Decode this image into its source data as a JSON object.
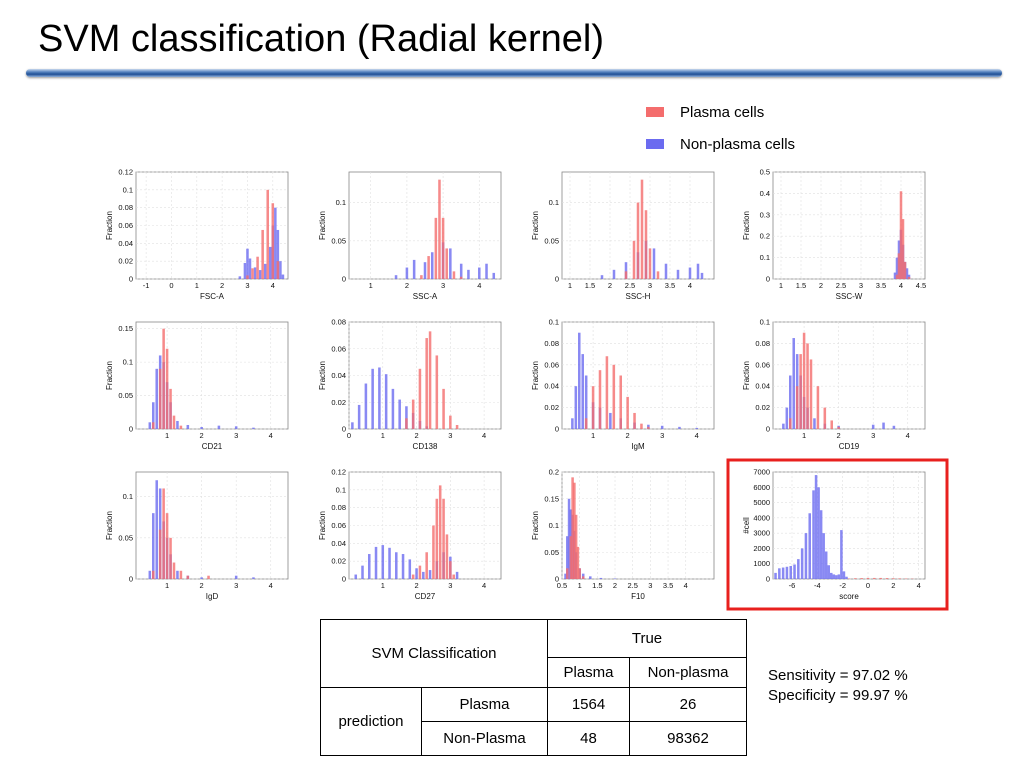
{
  "title": "SVM classification (Radial kernel)",
  "legend": [
    {
      "label": "Plasma cells",
      "color": "#f46d6d"
    },
    {
      "label": "Non-plasma cells",
      "color": "#6b6bf0"
    }
  ],
  "colors": {
    "plasma": "#f46d6d",
    "nonplasma": "#6b6bf0",
    "highlight": "#e8201e",
    "grid": "#e0e0e0"
  },
  "chart_data": [
    {
      "type": "bar",
      "title": "",
      "xlabel": "FSC-A",
      "ylabel": "Fraction",
      "xlim": [
        -1.4,
        4.6
      ],
      "ylim": [
        0,
        0.12
      ],
      "xticks": [
        "-1",
        "0",
        "1",
        "2",
        "3",
        "4"
      ],
      "yticks": [
        "0",
        "0.02",
        "0.04",
        "0.06",
        "0.08",
        "0.1",
        "0.12"
      ],
      "series": [
        {
          "name": "Plasma cells",
          "x": [
            3.0,
            3.2,
            3.4,
            3.6,
            3.8,
            4.0,
            4.2
          ],
          "values": [
            0.004,
            0.012,
            0.025,
            0.055,
            0.1,
            0.085,
            0.02
          ]
        },
        {
          "name": "Non-plasma cells",
          "x": [
            2.7,
            2.9,
            3.0,
            3.1,
            3.3,
            3.5,
            3.7,
            3.9,
            4.0,
            4.1,
            4.2,
            4.3,
            4.4
          ],
          "values": [
            0.003,
            0.018,
            0.034,
            0.023,
            0.013,
            0.01,
            0.017,
            0.036,
            0.06,
            0.08,
            0.055,
            0.02,
            0.005
          ]
        }
      ]
    },
    {
      "type": "bar",
      "title": "",
      "xlabel": "SSC-A",
      "ylabel": "Fraction",
      "xlim": [
        0.4,
        4.6
      ],
      "ylim": [
        0,
        0.14
      ],
      "xticks": [
        "1",
        "2",
        "3",
        "4"
      ],
      "yticks": [
        "0",
        "0.05",
        "0.1"
      ],
      "series": [
        {
          "name": "Plasma cells",
          "x": [
            2.4,
            2.6,
            2.8,
            2.9,
            3.0,
            3.1,
            3.3,
            3.5
          ],
          "values": [
            0.005,
            0.03,
            0.08,
            0.13,
            0.08,
            0.04,
            0.01,
            0.003
          ]
        },
        {
          "name": "Non-plasma cells",
          "x": [
            1.7,
            2.0,
            2.2,
            2.5,
            2.7,
            3.0,
            3.2,
            3.5,
            3.7,
            4.0,
            4.2,
            4.4
          ],
          "values": [
            0.005,
            0.015,
            0.025,
            0.022,
            0.035,
            0.048,
            0.04,
            0.02,
            0.012,
            0.015,
            0.02,
            0.008
          ]
        }
      ]
    },
    {
      "type": "bar",
      "title": "",
      "xlabel": "SSC-H",
      "ylabel": "Fraction",
      "xlim": [
        0.8,
        4.6
      ],
      "ylim": [
        0,
        0.14
      ],
      "xticks": [
        "1",
        "1.5",
        "2",
        "2.5",
        "3",
        "3.5",
        "4"
      ],
      "yticks": [
        "0",
        "0.05",
        "0.1"
      ],
      "series": [
        {
          "name": "Plasma cells",
          "x": [
            2.4,
            2.6,
            2.7,
            2.8,
            2.9,
            3.0,
            3.2
          ],
          "values": [
            0.01,
            0.05,
            0.1,
            0.13,
            0.09,
            0.04,
            0.01
          ]
        },
        {
          "name": "Non-plasma cells",
          "x": [
            1.8,
            2.1,
            2.4,
            2.7,
            2.9,
            3.1,
            3.4,
            3.7,
            4.0,
            4.2,
            4.3
          ],
          "values": [
            0.005,
            0.012,
            0.022,
            0.035,
            0.05,
            0.04,
            0.02,
            0.012,
            0.015,
            0.02,
            0.008
          ]
        }
      ]
    },
    {
      "type": "bar",
      "title": "",
      "xlabel": "SSC-W",
      "ylabel": "Fraction",
      "xlim": [
        0.8,
        4.6
      ],
      "ylim": [
        0,
        0.5
      ],
      "xticks": [
        "1",
        "1.5",
        "2",
        "2.5",
        "3",
        "3.5",
        "4",
        "4.5"
      ],
      "yticks": [
        "0",
        "0.1",
        "0.2",
        "0.3",
        "0.4",
        "0.5"
      ],
      "series": [
        {
          "name": "Plasma cells",
          "x": [
            3.9,
            3.95,
            4.0,
            4.05,
            4.1,
            4.2
          ],
          "values": [
            0.02,
            0.12,
            0.41,
            0.28,
            0.08,
            0.01
          ]
        },
        {
          "name": "Non-plasma cells",
          "x": [
            3.85,
            3.9,
            3.95,
            4.0,
            4.05,
            4.1,
            4.15,
            4.2
          ],
          "values": [
            0.03,
            0.1,
            0.18,
            0.23,
            0.16,
            0.08,
            0.05,
            0.02
          ]
        }
      ]
    },
    {
      "type": "bar",
      "title": "",
      "xlabel": "CD21",
      "ylabel": "Fraction",
      "xlim": [
        0.1,
        4.5
      ],
      "ylim": [
        0,
        0.16
      ],
      "xticks": [
        "1",
        "2",
        "3",
        "4"
      ],
      "yticks": [
        "0",
        "0.05",
        "0.1",
        "0.15"
      ],
      "series": [
        {
          "name": "Plasma cells",
          "x": [
            0.6,
            0.8,
            0.9,
            1.0,
            1.1,
            1.2,
            1.4
          ],
          "values": [
            0.01,
            0.09,
            0.15,
            0.12,
            0.06,
            0.02,
            0.005
          ]
        },
        {
          "name": "Non-plasma cells",
          "x": [
            0.5,
            0.6,
            0.7,
            0.8,
            0.9,
            1.0,
            1.1,
            1.3,
            1.6,
            2.0,
            2.5,
            3.0,
            3.5
          ],
          "values": [
            0.01,
            0.04,
            0.09,
            0.11,
            0.1,
            0.07,
            0.04,
            0.012,
            0.006,
            0.003,
            0.005,
            0.004,
            0.002
          ]
        }
      ]
    },
    {
      "type": "bar",
      "title": "",
      "xlabel": "CD138",
      "ylabel": "Fraction",
      "xlim": [
        0,
        4.5
      ],
      "ylim": [
        0,
        0.08
      ],
      "xticks": [
        "0",
        "1",
        "2",
        "3",
        "4"
      ],
      "yticks": [
        "0",
        "0.02",
        "0.04",
        "0.06",
        "0.08"
      ],
      "series": [
        {
          "name": "Plasma cells",
          "x": [
            1.7,
            1.9,
            2.1,
            2.3,
            2.4,
            2.6,
            2.8,
            3.0,
            3.2
          ],
          "values": [
            0.008,
            0.022,
            0.045,
            0.068,
            0.073,
            0.055,
            0.03,
            0.01,
            0.003
          ]
        },
        {
          "name": "Non-plasma cells",
          "x": [
            0.1,
            0.3,
            0.5,
            0.7,
            0.9,
            1.1,
            1.3,
            1.5,
            1.7,
            1.9,
            2.1,
            2.3
          ],
          "values": [
            0.005,
            0.018,
            0.034,
            0.045,
            0.046,
            0.041,
            0.03,
            0.022,
            0.017,
            0.012,
            0.006,
            0.002
          ]
        }
      ]
    },
    {
      "type": "bar",
      "title": "",
      "xlabel": "IgM",
      "ylabel": "Fraction",
      "xlim": [
        0.1,
        4.5
      ],
      "ylim": [
        0,
        0.1
      ],
      "xticks": [
        "1",
        "2",
        "3",
        "4"
      ],
      "yticks": [
        "0",
        "0.02",
        "0.04",
        "0.06",
        "0.08",
        "0.1"
      ],
      "series": [
        {
          "name": "Plasma cells",
          "x": [
            0.8,
            1.0,
            1.2,
            1.4,
            1.6,
            1.8,
            2.0,
            2.2,
            2.4,
            2.6
          ],
          "values": [
            0.01,
            0.04,
            0.055,
            0.068,
            0.06,
            0.05,
            0.03,
            0.015,
            0.005,
            0.002
          ]
        },
        {
          "name": "Non-plasma cells",
          "x": [
            0.4,
            0.5,
            0.6,
            0.7,
            0.8,
            1.0,
            1.2,
            1.5,
            1.8,
            2.2,
            2.6,
            3.0,
            3.5,
            4.0
          ],
          "values": [
            0.01,
            0.04,
            0.09,
            0.07,
            0.05,
            0.025,
            0.02,
            0.015,
            0.01,
            0.006,
            0.004,
            0.003,
            0.002,
            0.001
          ]
        }
      ]
    },
    {
      "type": "bar",
      "title": "",
      "xlabel": "CD19",
      "ylabel": "Fraction",
      "xlim": [
        0.1,
        4.5
      ],
      "ylim": [
        0,
        0.1
      ],
      "xticks": [
        "1",
        "2",
        "3",
        "4"
      ],
      "yticks": [
        "0",
        "0.02",
        "0.04",
        "0.06",
        "0.08",
        "0.1"
      ],
      "series": [
        {
          "name": "Plasma cells",
          "x": [
            0.6,
            0.8,
            0.9,
            1.0,
            1.1,
            1.2,
            1.4,
            1.6,
            1.8,
            2.0
          ],
          "values": [
            0.01,
            0.04,
            0.07,
            0.09,
            0.08,
            0.065,
            0.04,
            0.02,
            0.008,
            0.002
          ]
        },
        {
          "name": "Non-plasma cells",
          "x": [
            0.4,
            0.5,
            0.6,
            0.7,
            0.8,
            0.9,
            1.0,
            1.1,
            1.3,
            1.6,
            2.0,
            3.0,
            3.3,
            3.6
          ],
          "values": [
            0.005,
            0.02,
            0.05,
            0.085,
            0.07,
            0.05,
            0.03,
            0.02,
            0.01,
            0.005,
            0.003,
            0.004,
            0.006,
            0.003
          ]
        }
      ]
    },
    {
      "type": "bar",
      "title": "",
      "xlabel": "IgD",
      "ylabel": "Fraction",
      "xlim": [
        0.1,
        4.5
      ],
      "ylim": [
        0,
        0.13
      ],
      "xticks": [
        "1",
        "2",
        "3",
        "4"
      ],
      "yticks": [
        "0",
        "0.05",
        "0.1"
      ],
      "series": [
        {
          "name": "Plasma cells",
          "x": [
            0.6,
            0.8,
            0.9,
            1.0,
            1.1,
            1.2,
            1.4,
            1.6,
            2.2
          ],
          "values": [
            0.01,
            0.06,
            0.11,
            0.08,
            0.05,
            0.02,
            0.01,
            0.004,
            0.004
          ]
        },
        {
          "name": "Non-plasma cells",
          "x": [
            0.5,
            0.6,
            0.7,
            0.8,
            0.9,
            1.0,
            1.1,
            1.3,
            1.6,
            2.0,
            3.0,
            3.5
          ],
          "values": [
            0.01,
            0.08,
            0.12,
            0.11,
            0.07,
            0.05,
            0.03,
            0.01,
            0.004,
            0.002,
            0.004,
            0.002
          ]
        }
      ]
    },
    {
      "type": "bar",
      "title": "",
      "xlabel": "CD27",
      "ylabel": "Fraction",
      "xlim": [
        0,
        4.5
      ],
      "ylim": [
        0,
        0.12
      ],
      "xticks": [
        "1",
        "2",
        "3",
        "4"
      ],
      "yticks": [
        "0",
        "0.02",
        "0.04",
        "0.06",
        "0.08",
        "0.1",
        "0.12"
      ],
      "series": [
        {
          "name": "Plasma cells",
          "x": [
            1.9,
            2.1,
            2.3,
            2.5,
            2.6,
            2.7,
            2.8,
            2.9,
            3.0,
            3.1
          ],
          "values": [
            0.005,
            0.015,
            0.03,
            0.06,
            0.09,
            0.105,
            0.09,
            0.05,
            0.02,
            0.005
          ]
        },
        {
          "name": "Non-plasma cells",
          "x": [
            0.2,
            0.4,
            0.6,
            0.8,
            1.0,
            1.2,
            1.4,
            1.6,
            1.8,
            2.0,
            2.2,
            2.4,
            2.6,
            2.8,
            3.0,
            3.2
          ],
          "values": [
            0.005,
            0.015,
            0.028,
            0.036,
            0.038,
            0.035,
            0.03,
            0.028,
            0.022,
            0.012,
            0.008,
            0.01,
            0.02,
            0.03,
            0.025,
            0.008
          ]
        }
      ]
    },
    {
      "type": "bar",
      "title": "",
      "xlabel": "F10",
      "ylabel": "Fraction",
      "xlim": [
        0.5,
        4.8
      ],
      "ylim": [
        0,
        0.2
      ],
      "xticks": [
        "0.5",
        "1",
        "1.5",
        "2",
        "2.5",
        "3",
        "3.5",
        "4"
      ],
      "yticks": [
        "0",
        "0.05",
        "0.1",
        "0.15",
        "0.2"
      ],
      "series": [
        {
          "name": "Plasma cells",
          "x": [
            0.65,
            0.75,
            0.8,
            0.85,
            0.9,
            0.95,
            1.0,
            1.1
          ],
          "values": [
            0.02,
            0.08,
            0.19,
            0.18,
            0.12,
            0.06,
            0.02,
            0.005
          ]
        },
        {
          "name": "Non-plasma cells",
          "x": [
            0.6,
            0.65,
            0.7,
            0.75,
            0.8,
            0.85,
            0.9,
            1.0,
            1.1,
            1.3,
            1.6,
            2.0
          ],
          "values": [
            0.01,
            0.08,
            0.15,
            0.13,
            0.12,
            0.09,
            0.05,
            0.02,
            0.01,
            0.005,
            0.002,
            0.001
          ]
        }
      ]
    },
    {
      "type": "bar",
      "title": "",
      "xlabel": "score",
      "ylabel": "#cell",
      "xlim": [
        -7.5,
        4.5
      ],
      "ylim": [
        0,
        7000
      ],
      "xticks": [
        "-6",
        "-4",
        "-2",
        "0",
        "2",
        "4"
      ],
      "yticks": [
        "0",
        "1000",
        "2000",
        "3000",
        "4000",
        "5000",
        "6000",
        "7000"
      ],
      "series": [
        {
          "name": "Plasma cells",
          "x": [
            -1.5,
            -1,
            -0.5,
            0,
            0.5,
            1,
            1.5,
            2,
            2.5,
            3,
            3.5
          ],
          "values": [
            30,
            50,
            60,
            70,
            70,
            70,
            60,
            50,
            40,
            30,
            20
          ]
        },
        {
          "name": "Non-plasma cells",
          "x": [
            -7.3,
            -7,
            -6.7,
            -6.4,
            -6.1,
            -5.8,
            -5.5,
            -5.2,
            -4.9,
            -4.6,
            -4.3,
            -4.1,
            -3.9,
            -3.7,
            -3.5,
            -3.3,
            -3.1,
            -2.9,
            -2.7,
            -2.5,
            -2.3,
            -2.1,
            -1.9,
            -1.7
          ],
          "values": [
            400,
            700,
            750,
            800,
            850,
            950,
            1300,
            2000,
            3000,
            4300,
            5800,
            6800,
            6000,
            4500,
            3000,
            1800,
            900,
            400,
            300,
            250,
            300,
            3200,
            500,
            150
          ]
        }
      ]
    }
  ],
  "table": {
    "corner": "SVM Classification",
    "true_label": "True",
    "col_plasma": "Plasma",
    "col_nonplasma": "Non-plasma",
    "pred_label": "prediction",
    "row_plasma": "Plasma",
    "row_nonplasma": "Non-Plasma",
    "pp": "1564",
    "pn": "26",
    "np": "48",
    "nn": "98362"
  },
  "stats": {
    "sensitivity": "Sensitivity = 97.02 %",
    "specificity": "Specificity = 99.97 %"
  }
}
